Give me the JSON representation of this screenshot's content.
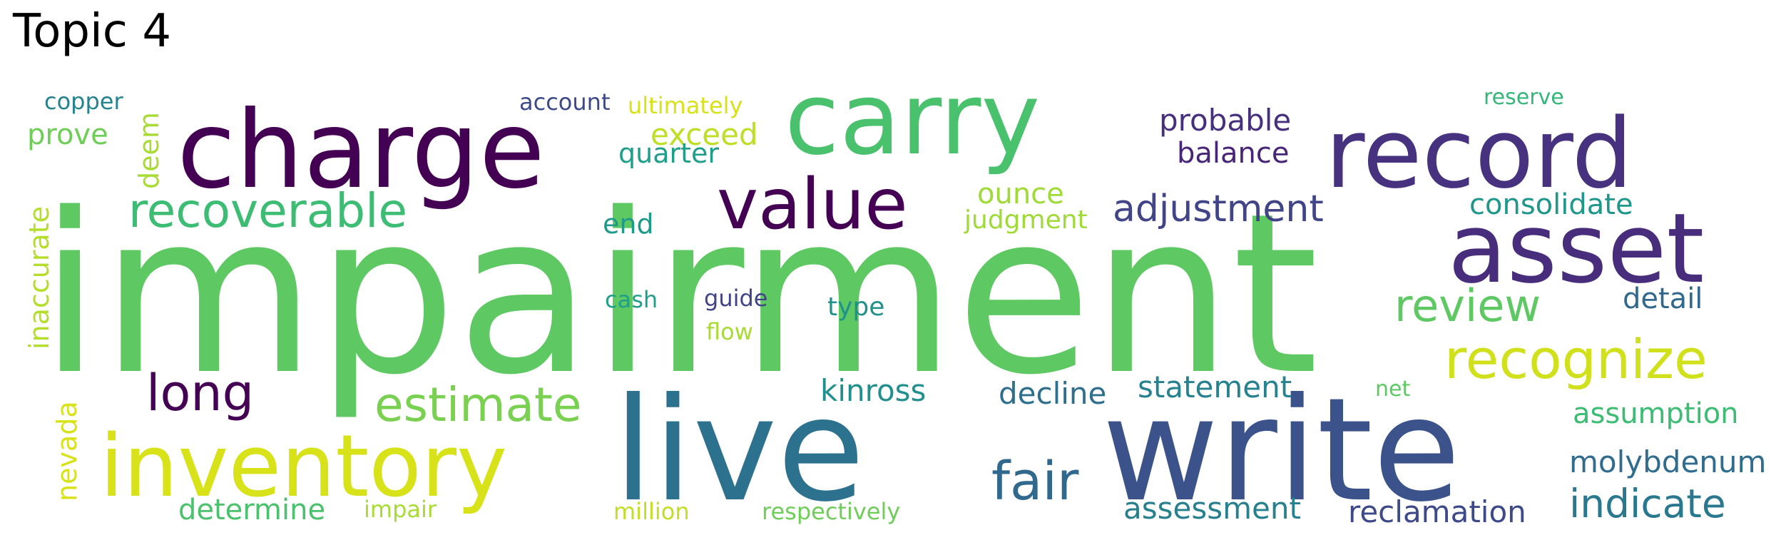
{
  "title": "Topic 4",
  "words": [
    {
      "text": "impairment",
      "color": "#5ec962"
    },
    {
      "text": "live",
      "color": "#2c728e"
    },
    {
      "text": "write",
      "color": "#3b528b"
    },
    {
      "text": "charge",
      "color": "#440154"
    },
    {
      "text": "carry",
      "color": "#4ac16d"
    },
    {
      "text": "record",
      "color": "#46327e"
    },
    {
      "text": "asset",
      "color": "#472d7b"
    },
    {
      "text": "inventory",
      "color": "#d8e219"
    },
    {
      "text": "value",
      "color": "#440154"
    },
    {
      "text": "recognize",
      "color": "#d0e11c"
    },
    {
      "text": "recoverable",
      "color": "#3dbc74"
    },
    {
      "text": "estimate",
      "color": "#7ad151"
    },
    {
      "text": "fair",
      "color": "#31688e"
    },
    {
      "text": "long",
      "color": "#440154"
    },
    {
      "text": "review",
      "color": "#5ec962"
    },
    {
      "text": "adjustment",
      "color": "#414487"
    },
    {
      "text": "indicate",
      "color": "#2a788e"
    },
    {
      "text": "assessment",
      "color": "#27808e"
    },
    {
      "text": "molybdenum",
      "color": "#2f6c8e"
    },
    {
      "text": "statement",
      "color": "#26828e"
    },
    {
      "text": "decline",
      "color": "#2e6f8e"
    },
    {
      "text": "reclamation",
      "color": "#3e4989"
    },
    {
      "text": "kinross",
      "color": "#21908d"
    },
    {
      "text": "determine",
      "color": "#4ac16d"
    },
    {
      "text": "probable",
      "color": "#46307e"
    },
    {
      "text": "balance",
      "color": "#482677"
    },
    {
      "text": "consolidate",
      "color": "#1f988b"
    },
    {
      "text": "assumption",
      "color": "#3dbc74"
    },
    {
      "text": "detail",
      "color": "#31688e"
    },
    {
      "text": "exceed",
      "color": "#bddf26"
    },
    {
      "text": "ounce",
      "color": "#a0da39"
    },
    {
      "text": "nevada",
      "color": "#d8e219"
    },
    {
      "text": "inaccurate",
      "color": "#b5de2b"
    },
    {
      "text": "prove",
      "color": "#6ece58"
    },
    {
      "text": "deem",
      "color": "#a8db34"
    },
    {
      "text": "quarter",
      "color": "#1f9e89"
    },
    {
      "text": "end",
      "color": "#1f9a8a"
    },
    {
      "text": "judgment",
      "color": "#a0da39"
    },
    {
      "text": "type",
      "color": "#21918c"
    },
    {
      "text": "cash",
      "color": "#1f9e89"
    },
    {
      "text": "guide",
      "color": "#414487"
    },
    {
      "text": "flow",
      "color": "#a8db34"
    },
    {
      "text": "copper",
      "color": "#25838e"
    },
    {
      "text": "account",
      "color": "#3e4989"
    },
    {
      "text": "ultimately",
      "color": "#d8e219"
    },
    {
      "text": "reserve",
      "color": "#35b779"
    },
    {
      "text": "net",
      "color": "#5ec962"
    },
    {
      "text": "impair",
      "color": "#a8db34"
    },
    {
      "text": "million",
      "color": "#c2df23"
    },
    {
      "text": "respectively",
      "color": "#6ece58"
    }
  ]
}
